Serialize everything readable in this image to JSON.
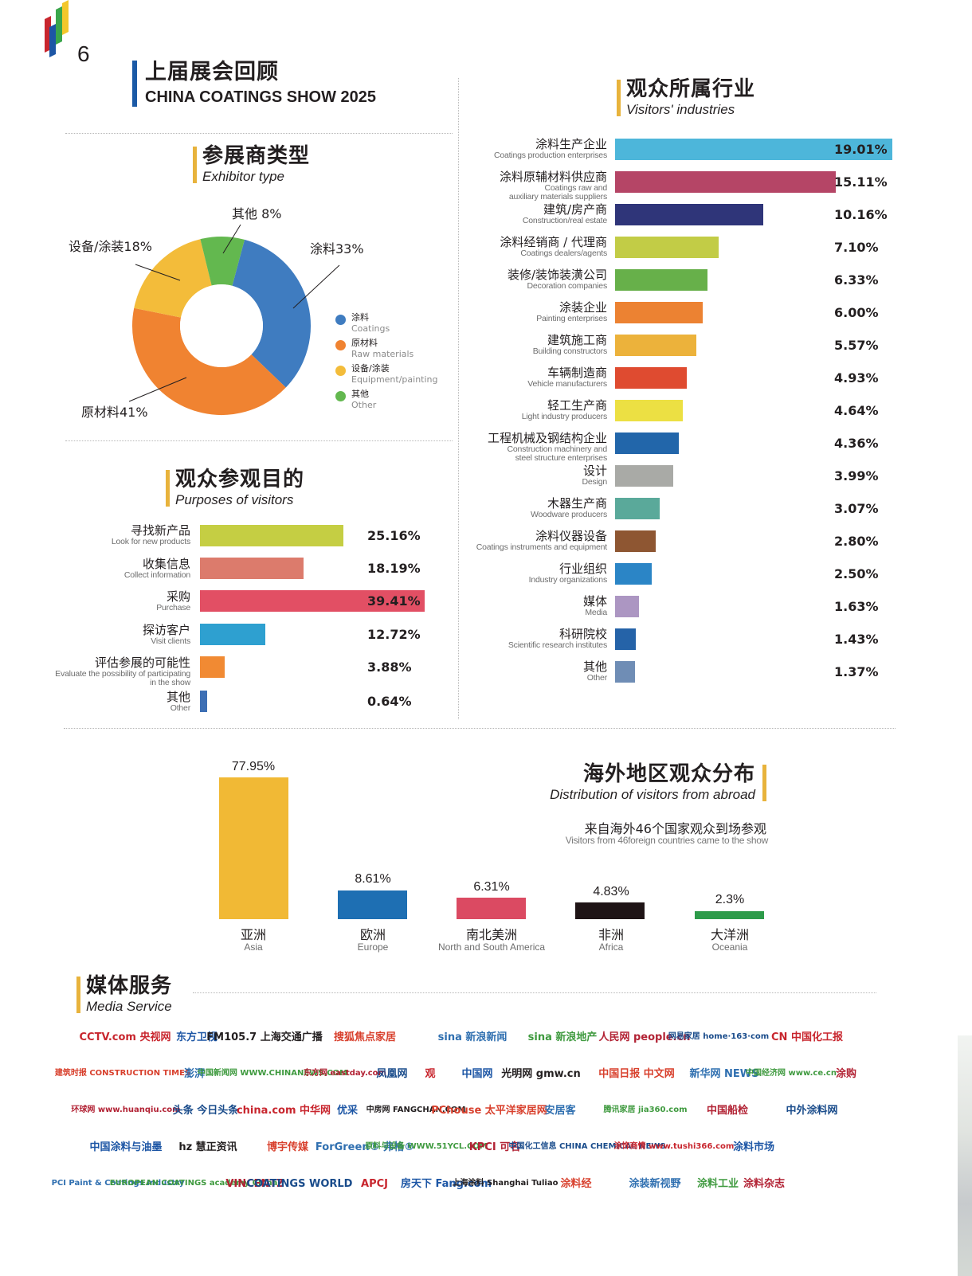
{
  "page": {
    "number": "6",
    "title_cn": "上届展会回顾",
    "title_en": "CHINA COATINGS SHOW 2025",
    "brand_colors": [
      "#c8262e",
      "#1d56a5",
      "#3aa64b",
      "#f3c72b"
    ]
  },
  "exhibitor": {
    "title_cn": "参展商类型",
    "title_en": "Exhibitor type",
    "slice_labels": [
      "涂料33%",
      "原材料41%",
      "设备/涂装18%",
      "其他 8%"
    ],
    "legend": [
      {
        "cn": "涂料",
        "en": "Coatings",
        "color": "#3f7cc0"
      },
      {
        "cn": "原材料",
        "en": "Raw materials",
        "color": "#f08331"
      },
      {
        "cn": "设备/涂装",
        "en": "Equipment/painting",
        "color": "#f3bc3a"
      },
      {
        "cn": "其他",
        "en": "Other",
        "color": "#63b84f"
      }
    ]
  },
  "purposes": {
    "title_cn": "观众参观目的",
    "title_en": "Purposes of visitors",
    "items": [
      {
        "cn": "寻找新产品",
        "en": "Look for new products",
        "value": "25.16%",
        "color": "#c5ce43"
      },
      {
        "cn": "收集信息",
        "en": "Collect information",
        "value": "18.19%",
        "color": "#dc7b6c"
      },
      {
        "cn": "采购",
        "en": "Purchase",
        "value": "39.41%",
        "color": "#e24f64"
      },
      {
        "cn": "探访客户",
        "en": "Visit clients",
        "value": "12.72%",
        "color": "#2ea0d0"
      },
      {
        "cn": "评估参展的可能性",
        "en": "Evaluate the possibility of participating",
        "en2": "in the show",
        "value": "3.88%",
        "color": "#f18a33"
      },
      {
        "cn": "其他",
        "en": "Other",
        "value": "0.64%",
        "color": "#3d6fb4"
      }
    ]
  },
  "industries": {
    "title_cn": "观众所属行业",
    "title_en": "Visitors' industries",
    "items": [
      {
        "cn": "涂料生产企业",
        "en": "Coatings production enterprises",
        "value": "19.01%",
        "color": "#4db6da"
      },
      {
        "cn": "涂料原辅材料供应商",
        "en": "Coatings raw and",
        "en2": "auxiliary materials suppliers",
        "value": "15.11%",
        "color": "#b54566"
      },
      {
        "cn": "建筑/房产商",
        "en": "Construction/real estate",
        "value": "10.16%",
        "color": "#2f3579"
      },
      {
        "cn": "涂料经销商 / 代理商",
        "en": "Coatings dealers/agents",
        "value": "7.10%",
        "color": "#c2cc46"
      },
      {
        "cn": "装修/装饰装潢公司",
        "en": "Decoration companies",
        "value": "6.33%",
        "color": "#67b04a"
      },
      {
        "cn": "涂装企业",
        "en": "Painting enterprises",
        "value": "6.00%",
        "color": "#ec8232"
      },
      {
        "cn": "建筑施工商",
        "en": "Building constructors",
        "value": "5.57%",
        "color": "#ecb23b"
      },
      {
        "cn": "车辆制造商",
        "en": "Vehicle manufacturers",
        "value": "4.93%",
        "color": "#df4b30"
      },
      {
        "cn": "轻工生产商",
        "en": "Light industry producers",
        "value": "4.64%",
        "color": "#ece043"
      },
      {
        "cn": "工程机械及钢结构企业",
        "en": "Construction machinery and",
        "en2": "steel structure enterprises",
        "value": "4.36%",
        "color": "#2266aa"
      },
      {
        "cn": "设计",
        "en": "Design",
        "value": "3.99%",
        "color": "#a9aaa6"
      },
      {
        "cn": "木器生产商",
        "en": "Woodware producers",
        "value": "3.07%",
        "color": "#5aa99a"
      },
      {
        "cn": "涂料仪器设备",
        "en": "Coatings instruments and equipment",
        "value": "2.80%",
        "color": "#8e5632"
      },
      {
        "cn": "行业组织",
        "en": "Industry organizations",
        "value": "2.50%",
        "color": "#2b85c6"
      },
      {
        "cn": "媒体",
        "en": "Media",
        "value": "1.63%",
        "color": "#ac96c2"
      },
      {
        "cn": "科研院校",
        "en": "Scientific research institutes",
        "value": "1.43%",
        "color": "#2563a8"
      },
      {
        "cn": "其他",
        "en": "Other",
        "value": "1.37%",
        "color": "#6f8db5"
      }
    ]
  },
  "overseas": {
    "title_cn": "海外地区观众分布",
    "title_en": "Distribution of visitors from abroad",
    "subtitle_cn": "来自海外46个国家观众到场参观",
    "subtitle_en": "Visitors from 46foreign countries came to the show",
    "regions": [
      {
        "cn": "亚洲",
        "en": "Asia",
        "value": "77.95%",
        "color": "#f1b935"
      },
      {
        "cn": "欧洲",
        "en": "Europe",
        "value": "8.61%",
        "color": "#1e6fb3"
      },
      {
        "cn": "南北美洲",
        "en": "North and South America",
        "value": "6.31%",
        "color": "#db4a62"
      },
      {
        "cn": "非洲",
        "en": "Africa",
        "value": "4.83%",
        "color": "#1f1416"
      },
      {
        "cn": "大洋洲",
        "en": "Oceania",
        "value": "2.3%",
        "color": "#2d9b4a"
      }
    ]
  },
  "media": {
    "title_cn": "媒体服务",
    "title_en": "Media Service",
    "rows": [
      [
        "CCTV.com 央视网",
        "东方卫视",
        "FM105.7 上海交通广播",
        "搜狐焦点家居",
        "sina 新浪新闻",
        "sina 新浪地产",
        "人民网 people.cn",
        "网易家居 home·163·com",
        "CN 中国化工报"
      ],
      [
        "建筑时报 CONSTRUCTION TIMES",
        "澎湃",
        "中国新闻网 WWW.CHINANEWS.COM",
        "东方网 eastday.com",
        "凤凰网",
        "观",
        "中国网",
        "光明网 gmw.cn",
        "中国日报 中文网",
        "新华网 NEWS",
        "中国经济网 www.ce.cn",
        "涂购"
      ],
      [
        "环球网 www.huanqiu.com",
        "头条 今日头条",
        "china.com 中华网",
        "优采",
        "中房网 FANGCHAN.COM",
        "PChouse 太平洋家居网",
        "安居客",
        "腾讯家居 jia360.com",
        "中国船检",
        "中外涂料网"
      ],
      [
        "中国涂料与油墨",
        "hz 慧正资讯",
        "博宇传媒",
        "ForGreen® 弗格®",
        "原料与设备 WWW.51YCL.COM",
        "KPCI 可名",
        "中国化工信息 CHINA CHEMICAL NEWS",
        "涂饰商情 www.tushi366.com",
        "涂料市场"
      ],
      [
        "PCI Paint & Coatings Industry",
        "EUROPEAN COATINGS academy China",
        "VINCENTZ",
        "COATINGS WORLD",
        "APCJ",
        "房天下 Fang.com",
        "上海涂料 Shanghai Tuliao",
        "涂料经",
        "涂装新视野",
        "涂料工业",
        "涂料杂志"
      ]
    ]
  },
  "chart_data": [
    {
      "type": "pie",
      "title": "参展商类型 Exhibitor type",
      "categories": [
        "涂料 Coatings",
        "原材料 Raw materials",
        "设备/涂装 Equipment/painting",
        "其他 Other"
      ],
      "values": [
        33,
        41,
        18,
        8
      ],
      "unit": "%",
      "donut": true,
      "legend_position": "right"
    },
    {
      "type": "bar",
      "orientation": "horizontal",
      "title": "观众参观目的 Purposes of visitors",
      "categories": [
        "寻找新产品 Look for new products",
        "收集信息 Collect information",
        "采购 Purchase",
        "探访客户 Visit clients",
        "评估参展的可能性 Evaluate the possibility of participating in the show",
        "其他 Other"
      ],
      "values": [
        25.16,
        18.19,
        39.41,
        12.72,
        3.88,
        0.64
      ],
      "unit": "%"
    },
    {
      "type": "bar",
      "orientation": "horizontal",
      "title": "观众所属行业 Visitors' industries",
      "categories": [
        "涂料生产企业",
        "涂料原辅材料供应商",
        "建筑/房产商",
        "涂料经销商 / 代理商",
        "装修/装饰装潢公司",
        "涂装企业",
        "建筑施工商",
        "车辆制造商",
        "轻工生产商",
        "工程机械及钢结构企业",
        "设计",
        "木器生产商",
        "涂料仪器设备",
        "行业组织",
        "媒体",
        "科研院校",
        "其他"
      ],
      "values": [
        19.01,
        15.11,
        10.16,
        7.1,
        6.33,
        6.0,
        5.57,
        4.93,
        4.64,
        4.36,
        3.99,
        3.07,
        2.8,
        2.5,
        1.63,
        1.43,
        1.37
      ],
      "unit": "%"
    },
    {
      "type": "bar",
      "orientation": "vertical",
      "title": "海外地区观众分布 Distribution of visitors from abroad",
      "subtitle": "来自海外46个国家观众到场参观",
      "categories": [
        "亚洲 Asia",
        "欧洲 Europe",
        "南北美洲 North and South America",
        "非洲 Africa",
        "大洋洲 Oceania"
      ],
      "values": [
        77.95,
        8.61,
        6.31,
        4.83,
        2.3
      ],
      "unit": "%"
    }
  ]
}
